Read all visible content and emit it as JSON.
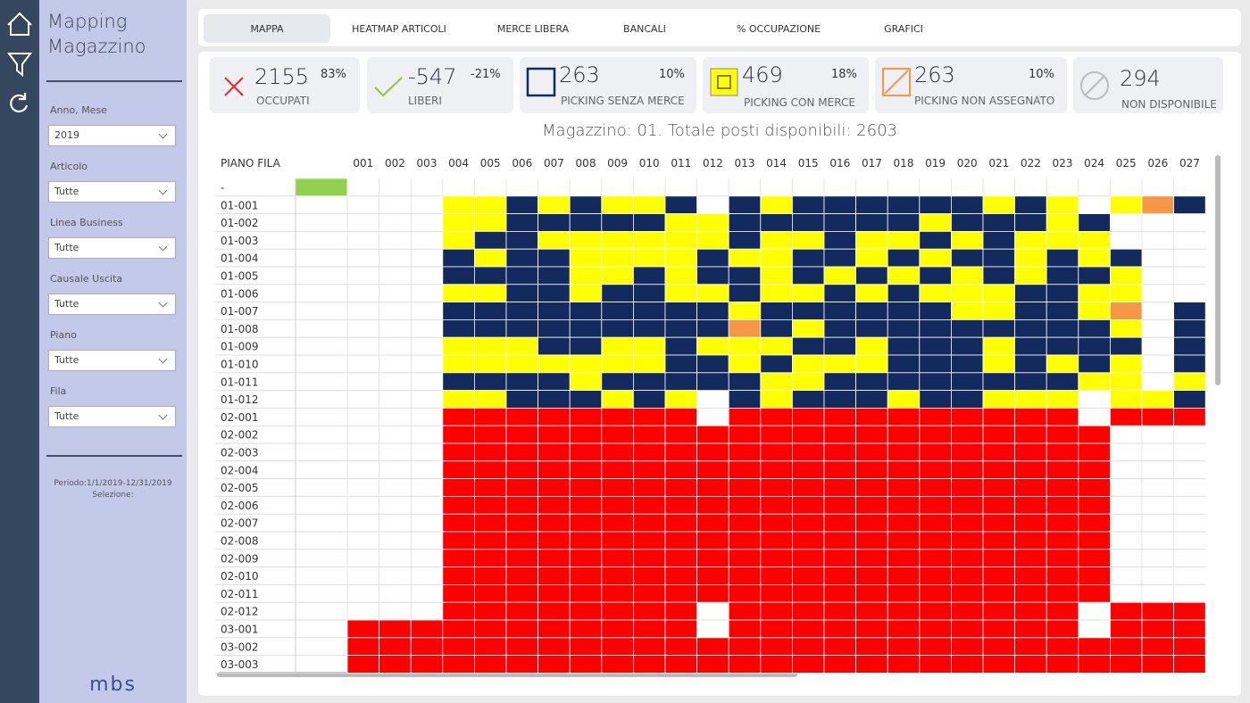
{
  "sidebar": {
    "title": "Mapping Magazzino",
    "filters": [
      {
        "label": "Anno, Mese",
        "value": "2019"
      },
      {
        "label": "Articolo",
        "value": "Tutte"
      },
      {
        "label": "Linea Business",
        "value": "Tutte"
      },
      {
        "label": "Causale Uscita",
        "value": "Tutte"
      },
      {
        "label": "Piano",
        "value": "Tutte"
      },
      {
        "label": "Fila",
        "value": "Tutte"
      }
    ],
    "period": "Periodo:1/1/2019-12/31/2019",
    "selection": "Selezione:",
    "logo": "mbs"
  },
  "tabs": [
    "MAPPA",
    "HEATMAP ARTICOLI",
    "MERCE LIBERA",
    "BANCALI",
    "% OCCUPAZIONE",
    "GRAFICI"
  ],
  "kpis": [
    {
      "value": "2155",
      "percent": "83%",
      "label": "OCCUPATI"
    },
    {
      "value": "-547",
      "percent": "-21%",
      "label": "LIBERI"
    },
    {
      "value": "263",
      "percent": "10%",
      "label": "PICKING SENZA MERCE"
    },
    {
      "value": "469",
      "percent": "18%",
      "label": "PICKING CON MERCE"
    },
    {
      "value": "263",
      "percent": "10%",
      "label": "PICKING NON ASSEGNATO"
    },
    {
      "value": "294",
      "label": "NON DISPONIBILE"
    }
  ],
  "grid": {
    "title": "Magazzino: 01. Totale posti disponibili: 2603",
    "corner": "PIANO FILA",
    "columns": [
      null,
      "001",
      "002",
      "003",
      "004",
      "005",
      "006",
      "007",
      "008",
      "009",
      "010",
      "011",
      "012",
      "013",
      "014",
      "015",
      "016",
      "017",
      "018",
      "019",
      "020",
      "021",
      "022",
      "023",
      "024",
      "025",
      "026",
      "027"
    ],
    "rows": [
      {
        "label": "-",
        "cells": [
          "#92d050",
          "#fff",
          "#fff",
          "#fff",
          "#fff",
          "#fff",
          "#fff",
          "#fff",
          "#fff",
          "#fff",
          "#fff",
          "#fff",
          "#fff",
          "#fff",
          "#fff",
          "#fff",
          "#fff",
          "#fff",
          "#fff",
          "#fff",
          "#fff",
          "#fff",
          "#fff",
          "#fff",
          "#fff",
          "#fff",
          "#fff",
          "#fff"
        ]
      },
      {
        "label": "01-001",
        "cells": [
          "#fff",
          "#fff",
          "#fff",
          "#fff",
          "#ff0",
          "#ff0",
          "#132a5e",
          "#ff0",
          "#132a5e",
          "#ff0",
          "#ff0",
          "#132a5e",
          "#fff",
          "#132a5e",
          "#ff0",
          "#132a5e",
          "#132a5e",
          "#132a5e",
          "#132a5e",
          "#132a5e",
          "#132a5e",
          "#ff0",
          "#132a5e",
          "#ff0",
          "#fff",
          "#ff0",
          "#f79646",
          "#132a5e"
        ]
      },
      {
        "label": "01-002",
        "cells": [
          "#fff",
          "#fff",
          "#fff",
          "#fff",
          "#ff0",
          "#ff0",
          "#132a5e",
          "#132a5e",
          "#132a5e",
          "#132a5e",
          "#132a5e",
          "#ff0",
          "#ff0",
          "#132a5e",
          "#132a5e",
          "#132a5e",
          "#132a5e",
          "#132a5e",
          "#132a5e",
          "#ff0",
          "#132a5e",
          "#132a5e",
          "#132a5e",
          "#ff0",
          "#132a5e",
          "#fff",
          "#fff",
          "#fff"
        ]
      },
      {
        "label": "01-003",
        "cells": [
          "#fff",
          "#fff",
          "#fff",
          "#fff",
          "#ff0",
          "#132a5e",
          "#132a5e",
          "#ff0",
          "#ff0",
          "#ff0",
          "#ff0",
          "#ff0",
          "#ff0",
          "#132a5e",
          "#ff0",
          "#ff0",
          "#132a5e",
          "#ff0",
          "#ff0",
          "#132a5e",
          "#ff0",
          "#132a5e",
          "#ff0",
          "#ff0",
          "#ff0",
          "#fff",
          "#fff",
          "#fff"
        ]
      },
      {
        "label": "01-004",
        "cells": [
          "#fff",
          "#fff",
          "#fff",
          "#fff",
          "#132a5e",
          "#ff0",
          "#132a5e",
          "#132a5e",
          "#ff0",
          "#ff0",
          "#ff0",
          "#ff0",
          "#132a5e",
          "#ff0",
          "#ff0",
          "#132a5e",
          "#132a5e",
          "#ff0",
          "#132a5e",
          "#ff0",
          "#132a5e",
          "#132a5e",
          "#ff0",
          "#132a5e",
          "#ff0",
          "#132a5e",
          "#fff",
          "#fff"
        ]
      },
      {
        "label": "01-005",
        "cells": [
          "#fff",
          "#fff",
          "#fff",
          "#fff",
          "#132a5e",
          "#132a5e",
          "#132a5e",
          "#132a5e",
          "#ff0",
          "#ff0",
          "#132a5e",
          "#ff0",
          "#132a5e",
          "#132a5e",
          "#ff0",
          "#132a5e",
          "#ff0",
          "#132a5e",
          "#ff0",
          "#132a5e",
          "#ff0",
          "#132a5e",
          "#ff0",
          "#132a5e",
          "#132a5e",
          "#ff0",
          "#fff",
          "#fff"
        ]
      },
      {
        "label": "01-006",
        "cells": [
          "#fff",
          "#fff",
          "#fff",
          "#fff",
          "#ff0",
          "#ff0",
          "#132a5e",
          "#132a5e",
          "#ff0",
          "#132a5e",
          "#132a5e",
          "#ff0",
          "#ff0",
          "#132a5e",
          "#ff0",
          "#ff0",
          "#132a5e",
          "#ff0",
          "#132a5e",
          "#ff0",
          "#ff0",
          "#ff0",
          "#132a5e",
          "#132a5e",
          "#ff0",
          "#ff0",
          "#fff",
          "#fff"
        ]
      },
      {
        "label": "01-007",
        "cells": [
          "#fff",
          "#fff",
          "#fff",
          "#fff",
          "#132a5e",
          "#132a5e",
          "#132a5e",
          "#132a5e",
          "#132a5e",
          "#132a5e",
          "#132a5e",
          "#132a5e",
          "#132a5e",
          "#ff0",
          "#132a5e",
          "#132a5e",
          "#132a5e",
          "#132a5e",
          "#132a5e",
          "#132a5e",
          "#ff0",
          "#ff0",
          "#132a5e",
          "#132a5e",
          "#ff0",
          "#f79646",
          "#fff",
          "#132a5e"
        ]
      },
      {
        "label": "01-008",
        "cells": [
          "#fff",
          "#fff",
          "#fff",
          "#fff",
          "#132a5e",
          "#132a5e",
          "#132a5e",
          "#132a5e",
          "#132a5e",
          "#132a5e",
          "#132a5e",
          "#132a5e",
          "#132a5e",
          "#f79646",
          "#132a5e",
          "#ff0",
          "#132a5e",
          "#132a5e",
          "#132a5e",
          "#132a5e",
          "#132a5e",
          "#132a5e",
          "#132a5e",
          "#132a5e",
          "#132a5e",
          "#ff0",
          "#fff",
          "#132a5e"
        ]
      },
      {
        "label": "01-009",
        "cells": [
          "#fff",
          "#fff",
          "#fff",
          "#fff",
          "#ff0",
          "#ff0",
          "#ff0",
          "#132a5e",
          "#132a5e",
          "#ff0",
          "#ff0",
          "#132a5e",
          "#ff0",
          "#ff0",
          "#ff0",
          "#132a5e",
          "#132a5e",
          "#ff0",
          "#132a5e",
          "#132a5e",
          "#132a5e",
          "#ff0",
          "#132a5e",
          "#132a5e",
          "#132a5e",
          "#132a5e",
          "#fff",
          "#132a5e"
        ]
      },
      {
        "label": "01-010",
        "cells": [
          "#fff",
          "#fff",
          "#fff",
          "#fff",
          "#ff0",
          "#ff0",
          "#ff0",
          "#ff0",
          "#ff0",
          "#ff0",
          "#ff0",
          "#132a5e",
          "#132a5e",
          "#ff0",
          "#132a5e",
          "#ff0",
          "#ff0",
          "#ff0",
          "#132a5e",
          "#132a5e",
          "#132a5e",
          "#ff0",
          "#132a5e",
          "#ff0",
          "#132a5e",
          "#ff0",
          "#fff",
          "#132a5e"
        ]
      },
      {
        "label": "01-011",
        "cells": [
          "#fff",
          "#fff",
          "#fff",
          "#fff",
          "#132a5e",
          "#132a5e",
          "#132a5e",
          "#132a5e",
          "#ff0",
          "#132a5e",
          "#132a5e",
          "#132a5e",
          "#132a5e",
          "#132a5e",
          "#ff0",
          "#ff0",
          "#132a5e",
          "#132a5e",
          "#132a5e",
          "#132a5e",
          "#132a5e",
          "#132a5e",
          "#132a5e",
          "#132a5e",
          "#ff0",
          "#ff0",
          "#fff",
          "#ff0"
        ]
      },
      {
        "label": "01-012",
        "cells": [
          "#fff",
          "#fff",
          "#fff",
          "#fff",
          "#ff0",
          "#ff0",
          "#132a5e",
          "#132a5e",
          "#132a5e",
          "#ff0",
          "#132a5e",
          "#ff0",
          "#fff",
          "#132a5e",
          "#ff0",
          "#132a5e",
          "#132a5e",
          "#132a5e",
          "#ff0",
          "#132a5e",
          "#132a5e",
          "#ff0",
          "#ff0",
          "#ff0",
          "#fff",
          "#ff0",
          "#ff0",
          "#132a5e"
        ]
      },
      {
        "label": "02-001",
        "cells": [
          "#fff",
          "#fff",
          "#fff",
          "#fff",
          "#f00",
          "#f00",
          "#f00",
          "#f00",
          "#f00",
          "#f00",
          "#f00",
          "#f00",
          "#fff",
          "#f00",
          "#f00",
          "#f00",
          "#f00",
          "#f00",
          "#f00",
          "#f00",
          "#f00",
          "#f00",
          "#f00",
          "#f00",
          "#fff",
          "#f00",
          "#f00",
          "#f00"
        ]
      },
      {
        "label": "02-002",
        "cells": [
          "#fff",
          "#fff",
          "#fff",
          "#fff",
          "#f00",
          "#f00",
          "#f00",
          "#f00",
          "#f00",
          "#f00",
          "#f00",
          "#f00",
          "#f00",
          "#f00",
          "#f00",
          "#f00",
          "#f00",
          "#f00",
          "#f00",
          "#f00",
          "#f00",
          "#f00",
          "#f00",
          "#f00",
          "#f00",
          "#fff",
          "#fff",
          "#fff"
        ]
      },
      {
        "label": "02-003",
        "cells": [
          "#fff",
          "#fff",
          "#fff",
          "#fff",
          "#f00",
          "#f00",
          "#f00",
          "#f00",
          "#f00",
          "#f00",
          "#f00",
          "#f00",
          "#f00",
          "#f00",
          "#f00",
          "#f00",
          "#f00",
          "#f00",
          "#f00",
          "#f00",
          "#f00",
          "#f00",
          "#f00",
          "#f00",
          "#f00",
          "#fff",
          "#fff",
          "#fff"
        ]
      },
      {
        "label": "02-004",
        "cells": [
          "#fff",
          "#fff",
          "#fff",
          "#fff",
          "#f00",
          "#f00",
          "#f00",
          "#f00",
          "#f00",
          "#f00",
          "#f00",
          "#f00",
          "#f00",
          "#f00",
          "#f00",
          "#f00",
          "#f00",
          "#f00",
          "#f00",
          "#f00",
          "#f00",
          "#f00",
          "#f00",
          "#f00",
          "#f00",
          "#fff",
          "#fff",
          "#fff"
        ]
      },
      {
        "label": "02-005",
        "cells": [
          "#fff",
          "#fff",
          "#fff",
          "#fff",
          "#f00",
          "#f00",
          "#f00",
          "#f00",
          "#f00",
          "#f00",
          "#f00",
          "#f00",
          "#f00",
          "#f00",
          "#f00",
          "#f00",
          "#f00",
          "#f00",
          "#f00",
          "#f00",
          "#f00",
          "#f00",
          "#f00",
          "#f00",
          "#f00",
          "#fff",
          "#fff",
          "#fff"
        ]
      },
      {
        "label": "02-006",
        "cells": [
          "#fff",
          "#fff",
          "#fff",
          "#fff",
          "#f00",
          "#f00",
          "#f00",
          "#f00",
          "#f00",
          "#f00",
          "#f00",
          "#f00",
          "#f00",
          "#f00",
          "#f00",
          "#f00",
          "#f00",
          "#f00",
          "#f00",
          "#f00",
          "#f00",
          "#f00",
          "#f00",
          "#f00",
          "#f00",
          "#fff",
          "#fff",
          "#fff"
        ]
      },
      {
        "label": "02-007",
        "cells": [
          "#fff",
          "#fff",
          "#fff",
          "#fff",
          "#f00",
          "#f00",
          "#f00",
          "#f00",
          "#f00",
          "#f00",
          "#f00",
          "#f00",
          "#f00",
          "#f00",
          "#f00",
          "#f00",
          "#f00",
          "#f00",
          "#f00",
          "#f00",
          "#f00",
          "#f00",
          "#f00",
          "#f00",
          "#f00",
          "#fff",
          "#fff",
          "#fff"
        ]
      },
      {
        "label": "02-008",
        "cells": [
          "#fff",
          "#fff",
          "#fff",
          "#fff",
          "#f00",
          "#f00",
          "#f00",
          "#f00",
          "#f00",
          "#f00",
          "#f00",
          "#f00",
          "#f00",
          "#f00",
          "#f00",
          "#f00",
          "#f00",
          "#f00",
          "#f00",
          "#f00",
          "#f00",
          "#f00",
          "#f00",
          "#f00",
          "#f00",
          "#fff",
          "#fff",
          "#fff"
        ]
      },
      {
        "label": "02-009",
        "cells": [
          "#fff",
          "#fff",
          "#fff",
          "#fff",
          "#f00",
          "#f00",
          "#f00",
          "#f00",
          "#f00",
          "#f00",
          "#f00",
          "#f00",
          "#f00",
          "#f00",
          "#f00",
          "#f00",
          "#f00",
          "#f00",
          "#f00",
          "#f00",
          "#f00",
          "#f00",
          "#f00",
          "#f00",
          "#f00",
          "#fff",
          "#fff",
          "#fff"
        ]
      },
      {
        "label": "02-010",
        "cells": [
          "#fff",
          "#fff",
          "#fff",
          "#fff",
          "#f00",
          "#f00",
          "#f00",
          "#f00",
          "#f00",
          "#f00",
          "#f00",
          "#f00",
          "#f00",
          "#f00",
          "#f00",
          "#f00",
          "#f00",
          "#f00",
          "#f00",
          "#f00",
          "#f00",
          "#f00",
          "#f00",
          "#f00",
          "#f00",
          "#fff",
          "#fff",
          "#fff"
        ]
      },
      {
        "label": "02-011",
        "cells": [
          "#fff",
          "#fff",
          "#fff",
          "#fff",
          "#f00",
          "#f00",
          "#f00",
          "#f00",
          "#f00",
          "#f00",
          "#f00",
          "#f00",
          "#f00",
          "#f00",
          "#f00",
          "#f00",
          "#f00",
          "#f00",
          "#f00",
          "#f00",
          "#f00",
          "#f00",
          "#f00",
          "#f00",
          "#f00",
          "#fff",
          "#fff",
          "#fff"
        ]
      },
      {
        "label": "02-012",
        "cells": [
          "#fff",
          "#fff",
          "#fff",
          "#fff",
          "#f00",
          "#f00",
          "#f00",
          "#f00",
          "#f00",
          "#f00",
          "#f00",
          "#f00",
          "#fff",
          "#f00",
          "#f00",
          "#f00",
          "#f00",
          "#f00",
          "#f00",
          "#f00",
          "#f00",
          "#f00",
          "#f00",
          "#f00",
          "#fff",
          "#f00",
          "#f00",
          "#f00"
        ]
      },
      {
        "label": "03-001",
        "cells": [
          "#fff",
          "#f00",
          "#f00",
          "#f00",
          "#f00",
          "#f00",
          "#f00",
          "#f00",
          "#f00",
          "#f00",
          "#f00",
          "#f00",
          "#fff",
          "#f00",
          "#f00",
          "#f00",
          "#f00",
          "#f00",
          "#f00",
          "#f00",
          "#f00",
          "#f00",
          "#f00",
          "#f00",
          "#fff",
          "#f00",
          "#f00",
          "#f00"
        ]
      },
      {
        "label": "03-002",
        "cells": [
          "#fff",
          "#f00",
          "#f00",
          "#f00",
          "#f00",
          "#f00",
          "#f00",
          "#f00",
          "#f00",
          "#f00",
          "#f00",
          "#f00",
          "#f00",
          "#f00",
          "#f00",
          "#f00",
          "#f00",
          "#f00",
          "#f00",
          "#f00",
          "#f00",
          "#f00",
          "#f00",
          "#f00",
          "#f00",
          "#f00",
          "#f00",
          "#f00"
        ]
      },
      {
        "label": "03-003",
        "cells": [
          "#fff",
          "#f00",
          "#f00",
          "#f00",
          "#f00",
          "#f00",
          "#f00",
          "#f00",
          "#f00",
          "#f00",
          "#f00",
          "#f00",
          "#f00",
          "#f00",
          "#f00",
          "#f00",
          "#f00",
          "#f00",
          "#f00",
          "#f00",
          "#f00",
          "#f00",
          "#f00",
          "#f00",
          "#f00",
          "#f00",
          "#f00",
          "#f00"
        ]
      }
    ]
  }
}
